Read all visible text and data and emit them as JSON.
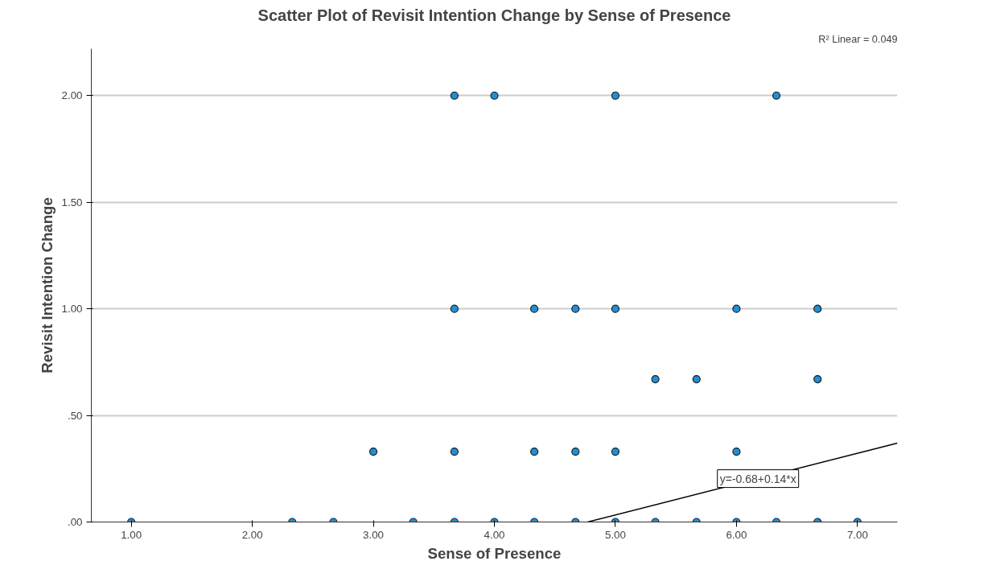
{
  "chart_data": {
    "type": "scatter",
    "title": "Scatter Plot of Revisit Intention Change by Sense of Presence",
    "xlabel": "Sense of Presence",
    "ylabel": "Revisit Intention Change",
    "xlim": [
      0.67,
      7.33
    ],
    "ylim": [
      0,
      2.22
    ],
    "xticks": [
      {
        "value": 1,
        "label": "1.00"
      },
      {
        "value": 2,
        "label": "2.00"
      },
      {
        "value": 3,
        "label": "3.00"
      },
      {
        "value": 4,
        "label": "4.00"
      },
      {
        "value": 5,
        "label": "5.00"
      },
      {
        "value": 6,
        "label": "6.00"
      },
      {
        "value": 7,
        "label": "7.00"
      }
    ],
    "yticks": [
      {
        "value": 0,
        "label": ".00"
      },
      {
        "value": 0.5,
        "label": ".50"
      },
      {
        "value": 1,
        "label": "1.00"
      },
      {
        "value": 1.5,
        "label": "1.50"
      },
      {
        "value": 2,
        "label": "2.00"
      }
    ],
    "grid": "y",
    "annotations": [
      "R² Linear = 0.049",
      "y=-0.68+0.14*x"
    ],
    "series": [
      {
        "marker": "circle",
        "color": "#1f8fd8",
        "x": [
          3.67,
          4.0,
          5.0,
          6.33,
          3.67,
          4.33,
          4.67,
          5.0,
          6.0,
          6.67,
          5.33,
          5.67,
          6.67,
          3.0,
          3.67,
          4.33,
          4.67,
          5.0,
          6.0,
          1.0,
          2.33,
          2.67,
          3.33,
          3.67,
          4.0,
          4.33,
          4.67,
          5.0,
          5.33,
          5.67,
          6.0,
          6.33,
          6.67,
          7.0
        ],
        "values": [
          2,
          2,
          2,
          2,
          1,
          1,
          1,
          1,
          1,
          1,
          0.67,
          0.67,
          0.67,
          0.33,
          0.33,
          0.33,
          0.33,
          0.33,
          0.33,
          0,
          0,
          0,
          0,
          0,
          0,
          0,
          0,
          0,
          0,
          0,
          0,
          0,
          0,
          0
        ]
      },
      {
        "type": "line",
        "color": "#000000",
        "x": [
          4.77,
          7.33
        ],
        "values": [
          0,
          0.37
        ]
      }
    ]
  }
}
